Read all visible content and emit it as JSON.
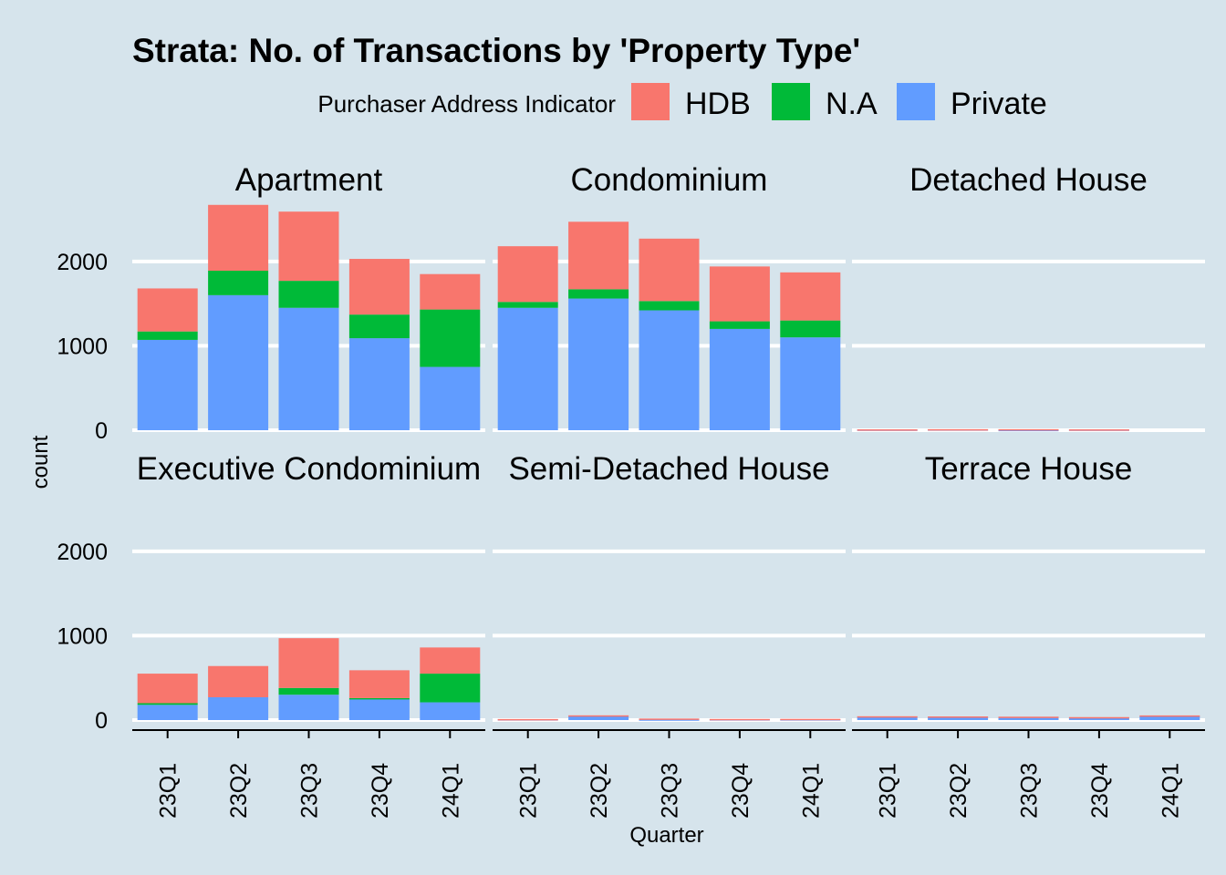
{
  "chart_data": {
    "type": "bar",
    "stacked": true,
    "faceted": true,
    "title": "Strata: No. of Transactions by 'Property Type'",
    "xlabel": "Quarter",
    "ylabel": "count",
    "ylim": [
      0,
      2700
    ],
    "y_ticks": [
      0,
      1000,
      2000
    ],
    "grid": true,
    "legend_position": "top",
    "legend_title": "Purchaser Address Indicator",
    "categories": [
      "23Q1",
      "23Q2",
      "23Q3",
      "23Q4",
      "24Q1"
    ],
    "series": [
      {
        "name": "HDB",
        "color": "#f8766d"
      },
      {
        "name": "N.A",
        "color": "#00ba38"
      },
      {
        "name": "Private",
        "color": "#619cff"
      }
    ],
    "facets": [
      {
        "name": "Apartment",
        "values": {
          "Private": [
            1070,
            1600,
            1450,
            1090,
            750
          ],
          "N.A": [
            100,
            290,
            320,
            280,
            680
          ],
          "HDB": [
            510,
            780,
            820,
            660,
            420
          ]
        }
      },
      {
        "name": "Condominium",
        "values": {
          "Private": [
            1450,
            1560,
            1420,
            1200,
            1100
          ],
          "N.A": [
            70,
            110,
            110,
            90,
            200
          ],
          "HDB": [
            660,
            800,
            740,
            650,
            570
          ]
        }
      },
      {
        "name": "Detached House",
        "values": {
          "Private": [
            8,
            10,
            4,
            8,
            0
          ],
          "N.A": [
            0,
            0,
            0,
            0,
            0
          ],
          "HDB": [
            2,
            2,
            8,
            2,
            0
          ]
        }
      },
      {
        "name": "Executive Condominium",
        "values": {
          "Private": [
            180,
            270,
            300,
            250,
            210
          ],
          "N.A": [
            20,
            0,
            80,
            10,
            340
          ],
          "HDB": [
            350,
            370,
            590,
            330,
            310
          ]
        }
      },
      {
        "name": "Semi-Detached House",
        "values": {
          "Private": [
            10,
            50,
            8,
            10,
            10
          ],
          "N.A": [
            0,
            0,
            0,
            0,
            0
          ],
          "HDB": [
            2,
            6,
            10,
            3,
            4
          ]
        }
      },
      {
        "name": "Terrace House",
        "values": {
          "Private": [
            40,
            35,
            30,
            30,
            45
          ],
          "N.A": [
            0,
            0,
            0,
            0,
            0
          ],
          "HDB": [
            5,
            8,
            10,
            5,
            10
          ]
        }
      }
    ]
  }
}
